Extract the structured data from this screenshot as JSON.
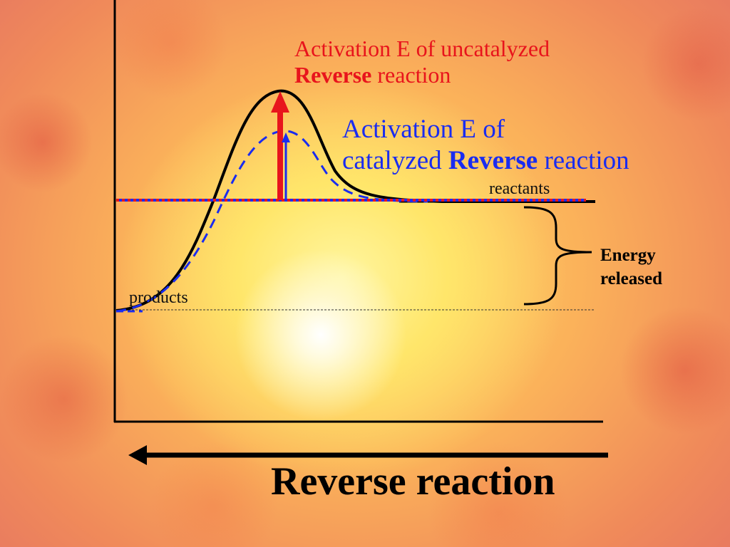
{
  "slide": {
    "background_theme": "fiery-sun",
    "labels": {
      "uncatalyzed_line1": "Activation E of uncatalyzed",
      "uncatalyzed_bold": "Reverse",
      "uncatalyzed_rest": " reaction",
      "catalyzed_line1": "Activation E of",
      "catalyzed_prefix": "catalyzed ",
      "catalyzed_bold": "Reverse",
      "catalyzed_rest": " reaction",
      "reactants": "reactants",
      "products": "products",
      "energy_line1": "Energy",
      "energy_line2": "released",
      "direction": "Reverse reaction"
    },
    "colors": {
      "uncatalyzed": "#e8141c",
      "catalyzed": "#1a2cf0",
      "axes": "#000000"
    }
  }
}
